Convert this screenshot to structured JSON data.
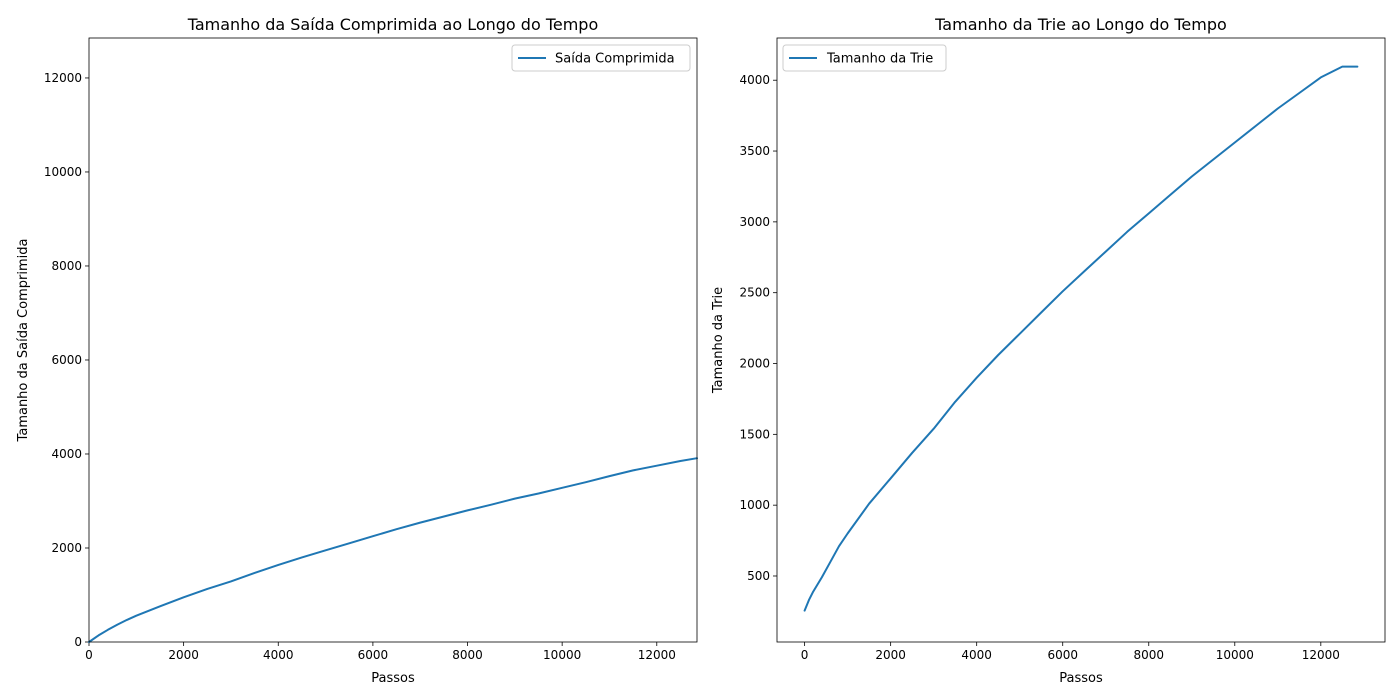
{
  "chart_data": [
    {
      "type": "line",
      "title": "Tamanho da Saída Comprimida ao Longo do Tempo",
      "xlabel": "Passos",
      "ylabel": "Tamanho da Saída Comprimida",
      "xlim": [
        0,
        12850
      ],
      "ylim": [
        0,
        12850
      ],
      "xticks": [
        0,
        2000,
        4000,
        6000,
        8000,
        10000,
        12000
      ],
      "yticks": [
        0,
        2000,
        4000,
        6000,
        8000,
        10000,
        12000
      ],
      "grid": false,
      "legend": "upper right",
      "series": [
        {
          "name": "Saída Comprimida",
          "color": "#1f77b4",
          "x": [
            0,
            200,
            400,
            600,
            800,
            1000,
            1500,
            2000,
            2500,
            3000,
            3500,
            4000,
            4500,
            5000,
            5500,
            6000,
            6500,
            7000,
            7500,
            8000,
            8500,
            9000,
            9500,
            10000,
            10500,
            11000,
            11500,
            12000,
            12500,
            12850
          ],
          "y": [
            0,
            140,
            260,
            370,
            470,
            560,
            760,
            950,
            1130,
            1290,
            1470,
            1640,
            1800,
            1950,
            2100,
            2250,
            2400,
            2540,
            2670,
            2800,
            2920,
            3050,
            3160,
            3280,
            3400,
            3530,
            3650,
            3750,
            3850,
            3910
          ]
        }
      ]
    },
    {
      "type": "line",
      "title": "Tamanho da Trie ao Longo do Tempo",
      "xlabel": "Passos",
      "ylabel": "Tamanho da Trie",
      "xlim": [
        -642,
        13492
      ],
      "ylim": [
        34,
        4298
      ],
      "xticks": [
        0,
        2000,
        4000,
        6000,
        8000,
        10000,
        12000
      ],
      "yticks": [
        500,
        1000,
        1500,
        2000,
        2500,
        3000,
        3500,
        4000
      ],
      "grid": false,
      "legend": "upper left",
      "series": [
        {
          "name": "Tamanho da Trie",
          "color": "#1f77b4",
          "x": [
            0,
            100,
            200,
            400,
            600,
            800,
            1000,
            1500,
            2000,
            2500,
            3000,
            3500,
            4000,
            4500,
            5000,
            5500,
            6000,
            6500,
            7000,
            7500,
            8000,
            8500,
            9000,
            9500,
            10000,
            10500,
            11000,
            11500,
            12000,
            12500,
            12600,
            12850
          ],
          "y": [
            256,
            330,
            390,
            490,
            600,
            710,
            800,
            1010,
            1190,
            1370,
            1540,
            1730,
            1900,
            2060,
            2210,
            2360,
            2510,
            2650,
            2790,
            2930,
            3060,
            3190,
            3320,
            3440,
            3560,
            3680,
            3800,
            3910,
            4020,
            4096,
            4096,
            4096
          ]
        }
      ]
    }
  ]
}
